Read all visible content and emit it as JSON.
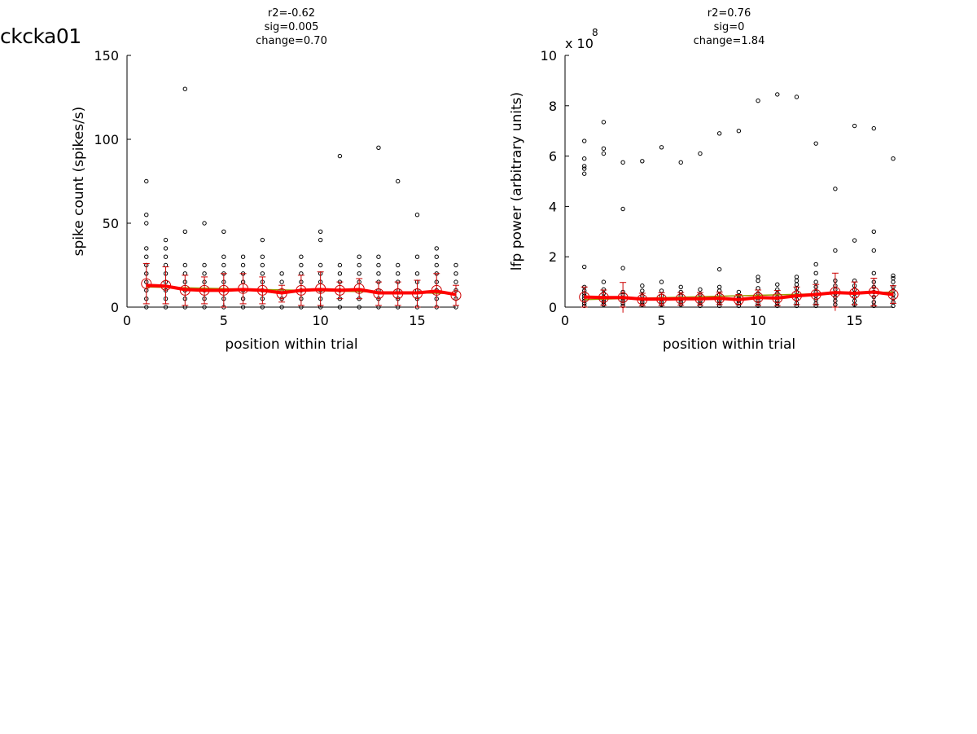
{
  "figure_label": "ckcka01",
  "colors": {
    "points": "#000000",
    "mean": "#cc0000",
    "smooth": "#ff0000",
    "fit": "#9a9a00"
  },
  "chart_data": [
    {
      "type": "scatter",
      "title_lines": [
        "r2=-0.62",
        "sig=0.005",
        "change=0.70"
      ],
      "xlabel": "position within trial",
      "ylabel": "spike count (spikes/s)",
      "exponent_label": "",
      "xlim": [
        0,
        17
      ],
      "ylim": [
        0,
        150
      ],
      "xticks": [
        0,
        5,
        10,
        15
      ],
      "yticks": [
        0,
        50,
        100,
        150
      ],
      "grid": false,
      "points": [
        [
          1,
          0
        ],
        [
          1,
          5
        ],
        [
          1,
          10
        ],
        [
          1,
          15
        ],
        [
          1,
          20
        ],
        [
          1,
          25
        ],
        [
          1,
          30
        ],
        [
          1,
          35
        ],
        [
          1,
          50
        ],
        [
          1,
          55
        ],
        [
          1,
          75
        ],
        [
          2,
          0
        ],
        [
          2,
          5
        ],
        [
          2,
          10
        ],
        [
          2,
          15
        ],
        [
          2,
          20
        ],
        [
          2,
          25
        ],
        [
          2,
          30
        ],
        [
          2,
          35
        ],
        [
          2,
          40
        ],
        [
          3,
          0
        ],
        [
          3,
          5
        ],
        [
          3,
          10
        ],
        [
          3,
          15
        ],
        [
          3,
          20
        ],
        [
          3,
          25
        ],
        [
          3,
          45
        ],
        [
          3,
          130
        ],
        [
          4,
          0
        ],
        [
          4,
          5
        ],
        [
          4,
          10
        ],
        [
          4,
          15
        ],
        [
          4,
          20
        ],
        [
          4,
          25
        ],
        [
          4,
          50
        ],
        [
          5,
          0
        ],
        [
          5,
          5
        ],
        [
          5,
          10
        ],
        [
          5,
          15
        ],
        [
          5,
          20
        ],
        [
          5,
          25
        ],
        [
          5,
          30
        ],
        [
          5,
          45
        ],
        [
          6,
          0
        ],
        [
          6,
          5
        ],
        [
          6,
          10
        ],
        [
          6,
          15
        ],
        [
          6,
          20
        ],
        [
          6,
          25
        ],
        [
          6,
          30
        ],
        [
          7,
          0
        ],
        [
          7,
          5
        ],
        [
          7,
          10
        ],
        [
          7,
          15
        ],
        [
          7,
          20
        ],
        [
          7,
          25
        ],
        [
          7,
          30
        ],
        [
          7,
          40
        ],
        [
          8,
          0
        ],
        [
          8,
          5
        ],
        [
          8,
          10
        ],
        [
          8,
          15
        ],
        [
          8,
          20
        ],
        [
          9,
          0
        ],
        [
          9,
          5
        ],
        [
          9,
          10
        ],
        [
          9,
          15
        ],
        [
          9,
          20
        ],
        [
          9,
          25
        ],
        [
          9,
          30
        ],
        [
          10,
          0
        ],
        [
          10,
          5
        ],
        [
          10,
          10
        ],
        [
          10,
          15
        ],
        [
          10,
          20
        ],
        [
          10,
          25
        ],
        [
          10,
          40
        ],
        [
          10,
          45
        ],
        [
          11,
          0
        ],
        [
          11,
          5
        ],
        [
          11,
          10
        ],
        [
          11,
          15
        ],
        [
          11,
          20
        ],
        [
          11,
          25
        ],
        [
          11,
          90
        ],
        [
          12,
          0
        ],
        [
          12,
          5
        ],
        [
          12,
          10
        ],
        [
          12,
          15
        ],
        [
          12,
          20
        ],
        [
          12,
          25
        ],
        [
          12,
          30
        ],
        [
          13,
          0
        ],
        [
          13,
          5
        ],
        [
          13,
          10
        ],
        [
          13,
          15
        ],
        [
          13,
          20
        ],
        [
          13,
          25
        ],
        [
          13,
          30
        ],
        [
          13,
          95
        ],
        [
          14,
          0
        ],
        [
          14,
          5
        ],
        [
          14,
          10
        ],
        [
          14,
          15
        ],
        [
          14,
          20
        ],
        [
          14,
          25
        ],
        [
          14,
          75
        ],
        [
          15,
          0
        ],
        [
          15,
          5
        ],
        [
          15,
          10
        ],
        [
          15,
          15
        ],
        [
          15,
          20
        ],
        [
          15,
          30
        ],
        [
          15,
          55
        ],
        [
          16,
          0
        ],
        [
          16,
          5
        ],
        [
          16,
          10
        ],
        [
          16,
          15
        ],
        [
          16,
          20
        ],
        [
          16,
          25
        ],
        [
          16,
          30
        ],
        [
          16,
          35
        ],
        [
          17,
          0
        ],
        [
          17,
          5
        ],
        [
          17,
          10
        ],
        [
          17,
          15
        ],
        [
          17,
          20
        ],
        [
          17,
          25
        ]
      ],
      "means": [
        {
          "x": 1,
          "y": 14,
          "sd": 12
        },
        {
          "x": 2,
          "y": 13,
          "sd": 11
        },
        {
          "x": 3,
          "y": 10,
          "sd": 9
        },
        {
          "x": 4,
          "y": 10,
          "sd": 8
        },
        {
          "x": 5,
          "y": 10,
          "sd": 10
        },
        {
          "x": 6,
          "y": 11,
          "sd": 9
        },
        {
          "x": 7,
          "y": 10,
          "sd": 8
        },
        {
          "x": 8,
          "y": 8,
          "sd": 5
        },
        {
          "x": 9,
          "y": 10,
          "sd": 9
        },
        {
          "x": 10,
          "y": 11,
          "sd": 10
        },
        {
          "x": 11,
          "y": 10,
          "sd": 5
        },
        {
          "x": 12,
          "y": 11,
          "sd": 6
        },
        {
          "x": 13,
          "y": 8,
          "sd": 7
        },
        {
          "x": 14,
          "y": 8,
          "sd": 7
        },
        {
          "x": 15,
          "y": 8,
          "sd": 8
        },
        {
          "x": 16,
          "y": 10,
          "sd": 10
        },
        {
          "x": 17,
          "y": 7,
          "sd": 6
        }
      ],
      "smooth": [
        [
          1,
          13
        ],
        [
          2,
          12.5
        ],
        [
          3,
          10.5
        ],
        [
          4,
          10
        ],
        [
          5,
          10
        ],
        [
          6,
          10.5
        ],
        [
          7,
          10
        ],
        [
          8,
          8.5
        ],
        [
          9,
          10
        ],
        [
          10,
          10.5
        ],
        [
          11,
          10
        ],
        [
          12,
          10.5
        ],
        [
          13,
          8.5
        ],
        [
          14,
          8.5
        ],
        [
          15,
          8.5
        ],
        [
          16,
          9.5
        ],
        [
          17,
          7.5
        ]
      ],
      "fit": [
        [
          1,
          12
        ],
        [
          17,
          8
        ]
      ]
    },
    {
      "type": "scatter",
      "title_lines": [
        "r2=0.76",
        "sig=0",
        "change=1.84"
      ],
      "xlabel": "position within trial",
      "ylabel": "lfp power (arbitrary units)",
      "exponent_label": "x 10",
      "exponent": "8",
      "xlim": [
        0,
        17
      ],
      "ylim": [
        0,
        10
      ],
      "xticks": [
        0,
        5,
        10,
        15
      ],
      "yticks": [
        0,
        2,
        4,
        6,
        8,
        10
      ],
      "grid": false,
      "points": [
        [
          1,
          0.05
        ],
        [
          1,
          0.15
        ],
        [
          1,
          0.25
        ],
        [
          1,
          0.35
        ],
        [
          1,
          0.45
        ],
        [
          1,
          0.55
        ],
        [
          1,
          0.65
        ],
        [
          1,
          0.8
        ],
        [
          1,
          1.6
        ],
        [
          1,
          5.3
        ],
        [
          1,
          5.5
        ],
        [
          1,
          5.6
        ],
        [
          1,
          5.9
        ],
        [
          1,
          6.6
        ],
        [
          2,
          0.1
        ],
        [
          2,
          0.2
        ],
        [
          2,
          0.3
        ],
        [
          2,
          0.4
        ],
        [
          2,
          0.55
        ],
        [
          2,
          0.7
        ],
        [
          2,
          1.0
        ],
        [
          2,
          6.1
        ],
        [
          2,
          6.3
        ],
        [
          2,
          7.35
        ],
        [
          3,
          0.05
        ],
        [
          3,
          0.15
        ],
        [
          3,
          0.25
        ],
        [
          3,
          0.35
        ],
        [
          3,
          0.5
        ],
        [
          3,
          0.6
        ],
        [
          3,
          1.55
        ],
        [
          3,
          3.9
        ],
        [
          3,
          5.75
        ],
        [
          4,
          0.1
        ],
        [
          4,
          0.2
        ],
        [
          4,
          0.3
        ],
        [
          4,
          0.45
        ],
        [
          4,
          0.65
        ],
        [
          4,
          0.85
        ],
        [
          4,
          5.8
        ],
        [
          5,
          0.1
        ],
        [
          5,
          0.2
        ],
        [
          5,
          0.3
        ],
        [
          5,
          0.45
        ],
        [
          5,
          0.65
        ],
        [
          5,
          1.0
        ],
        [
          5,
          6.35
        ],
        [
          6,
          0.1
        ],
        [
          6,
          0.2
        ],
        [
          6,
          0.3
        ],
        [
          6,
          0.45
        ],
        [
          6,
          0.6
        ],
        [
          6,
          0.8
        ],
        [
          6,
          5.75
        ],
        [
          7,
          0.05
        ],
        [
          7,
          0.15
        ],
        [
          7,
          0.25
        ],
        [
          7,
          0.35
        ],
        [
          7,
          0.5
        ],
        [
          7,
          0.7
        ],
        [
          7,
          6.1
        ],
        [
          8,
          0.05
        ],
        [
          8,
          0.15
        ],
        [
          8,
          0.25
        ],
        [
          8,
          0.35
        ],
        [
          8,
          0.5
        ],
        [
          8,
          0.65
        ],
        [
          8,
          0.8
        ],
        [
          8,
          1.5
        ],
        [
          8,
          6.9
        ],
        [
          9,
          0.05
        ],
        [
          9,
          0.15
        ],
        [
          9,
          0.25
        ],
        [
          9,
          0.35
        ],
        [
          9,
          0.45
        ],
        [
          9,
          0.6
        ],
        [
          9,
          7.0
        ],
        [
          10,
          0.05
        ],
        [
          10,
          0.15
        ],
        [
          10,
          0.25
        ],
        [
          10,
          0.4
        ],
        [
          10,
          0.55
        ],
        [
          10,
          0.75
        ],
        [
          10,
          1.05
        ],
        [
          10,
          1.2
        ],
        [
          10,
          8.2
        ],
        [
          11,
          0.05
        ],
        [
          11,
          0.15
        ],
        [
          11,
          0.25
        ],
        [
          11,
          0.4
        ],
        [
          11,
          0.55
        ],
        [
          11,
          0.7
        ],
        [
          11,
          0.9
        ],
        [
          11,
          8.45
        ],
        [
          12,
          0.05
        ],
        [
          12,
          0.15
        ],
        [
          12,
          0.3
        ],
        [
          12,
          0.45
        ],
        [
          12,
          0.6
        ],
        [
          12,
          0.75
        ],
        [
          12,
          0.9
        ],
        [
          12,
          1.05
        ],
        [
          12,
          1.2
        ],
        [
          12,
          8.35
        ],
        [
          13,
          0.05
        ],
        [
          13,
          0.15
        ],
        [
          13,
          0.3
        ],
        [
          13,
          0.45
        ],
        [
          13,
          0.6
        ],
        [
          13,
          0.8
        ],
        [
          13,
          1.0
        ],
        [
          13,
          1.35
        ],
        [
          13,
          1.7
        ],
        [
          13,
          6.5
        ],
        [
          14,
          0.1
        ],
        [
          14,
          0.25
        ],
        [
          14,
          0.4
        ],
        [
          14,
          0.55
        ],
        [
          14,
          0.7
        ],
        [
          14,
          0.85
        ],
        [
          14,
          1.05
        ],
        [
          14,
          2.25
        ],
        [
          14,
          4.7
        ],
        [
          15,
          0.1
        ],
        [
          15,
          0.25
        ],
        [
          15,
          0.4
        ],
        [
          15,
          0.55
        ],
        [
          15,
          0.7
        ],
        [
          15,
          0.85
        ],
        [
          15,
          1.05
        ],
        [
          15,
          2.65
        ],
        [
          15,
          7.2
        ],
        [
          16,
          0.05
        ],
        [
          16,
          0.2
        ],
        [
          16,
          0.4
        ],
        [
          16,
          0.6
        ],
        [
          16,
          0.8
        ],
        [
          16,
          1.0
        ],
        [
          16,
          1.35
        ],
        [
          16,
          2.25
        ],
        [
          16,
          3.0
        ],
        [
          16,
          7.1
        ],
        [
          17,
          0.05
        ],
        [
          17,
          0.2
        ],
        [
          17,
          0.35
        ],
        [
          17,
          0.5
        ],
        [
          17,
          0.65
        ],
        [
          17,
          0.8
        ],
        [
          17,
          1.0
        ],
        [
          17,
          1.15
        ],
        [
          17,
          1.25
        ],
        [
          17,
          5.9
        ]
      ],
      "means": [
        {
          "x": 1,
          "y": 0.4,
          "sd": 0.4
        },
        {
          "x": 2,
          "y": 0.38,
          "sd": 0.3
        },
        {
          "x": 3,
          "y": 0.38,
          "sd": 0.6
        },
        {
          "x": 4,
          "y": 0.3,
          "sd": 0.25
        },
        {
          "x": 5,
          "y": 0.32,
          "sd": 0.25
        },
        {
          "x": 6,
          "y": 0.33,
          "sd": 0.25
        },
        {
          "x": 7,
          "y": 0.33,
          "sd": 0.25
        },
        {
          "x": 8,
          "y": 0.35,
          "sd": 0.25
        },
        {
          "x": 9,
          "y": 0.3,
          "sd": 0.2
        },
        {
          "x": 10,
          "y": 0.38,
          "sd": 0.3
        },
        {
          "x": 11,
          "y": 0.36,
          "sd": 0.3
        },
        {
          "x": 12,
          "y": 0.45,
          "sd": 0.35
        },
        {
          "x": 13,
          "y": 0.5,
          "sd": 0.4
        },
        {
          "x": 14,
          "y": 0.6,
          "sd": 0.75
        },
        {
          "x": 15,
          "y": 0.55,
          "sd": 0.45
        },
        {
          "x": 16,
          "y": 0.6,
          "sd": 0.55
        },
        {
          "x": 17,
          "y": 0.5,
          "sd": 0.35
        }
      ],
      "smooth": [
        [
          1,
          0.4
        ],
        [
          2,
          0.38
        ],
        [
          3,
          0.38
        ],
        [
          4,
          0.32
        ],
        [
          5,
          0.32
        ],
        [
          6,
          0.33
        ],
        [
          7,
          0.33
        ],
        [
          8,
          0.35
        ],
        [
          9,
          0.3
        ],
        [
          10,
          0.38
        ],
        [
          11,
          0.36
        ],
        [
          12,
          0.45
        ],
        [
          13,
          0.5
        ],
        [
          14,
          0.58
        ],
        [
          15,
          0.55
        ],
        [
          16,
          0.6
        ],
        [
          17,
          0.5
        ]
      ],
      "fit": [
        [
          1,
          0.3
        ],
        [
          17,
          0.6
        ]
      ]
    }
  ]
}
